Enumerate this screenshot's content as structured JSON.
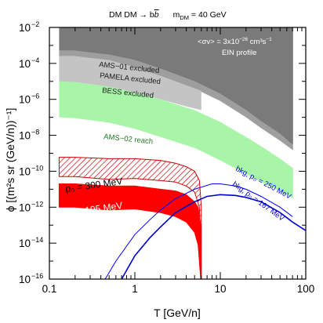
{
  "chart_data": {
    "type": "line",
    "title": {
      "process": "DM DM → b",
      "bbar": "b",
      "mass": "m",
      "mass_sub": "DM",
      "mass_value": " = 40 GeV"
    },
    "xlabel": "T  [GeV/n]",
    "ylabel": "ϕ [(m²s sr (GeV/n))⁻¹]",
    "xscale": "log",
    "yscale": "log",
    "xlim": [
      0.1,
      100
    ],
    "ylim": [
      1e-16,
      0.01
    ],
    "x_ticks": [
      {
        "value": 0.1,
        "label": "0.1"
      },
      {
        "value": 1,
        "label": "1"
      },
      {
        "value": 10,
        "label": "10"
      },
      {
        "value": 100,
        "label": "100"
      }
    ],
    "y_ticks": [
      {
        "value": 0.01,
        "label": "10",
        "exp": "−2"
      },
      {
        "value": 0.0001,
        "label": "10",
        "exp": "−4"
      },
      {
        "value": 1e-06,
        "label": "10",
        "exp": "−6"
      },
      {
        "value": 1e-08,
        "label": "10",
        "exp": "−8"
      },
      {
        "value": 1e-10,
        "label": "10",
        "exp": "−10"
      },
      {
        "value": 1e-12,
        "label": "10",
        "exp": "−12"
      },
      {
        "value": 1e-14,
        "label": "10",
        "exp": "−14"
      },
      {
        "value": 1e-16,
        "label": "10",
        "exp": "−16"
      }
    ],
    "annotations": {
      "cross_section": "<σv> = 3x10",
      "cross_section_exp": "−26",
      "cross_section_unit": " cm³s",
      "cross_section_unit_exp": "−1",
      "profile": "EIN profile"
    },
    "regions": [
      {
        "name": "AMS−01 excluded",
        "color": "#7a7a7a",
        "label_color": "#1a1a1a",
        "x": [
          0.13,
          0.2,
          0.5,
          1,
          2,
          5,
          10,
          20,
          30,
          50,
          65,
          71
        ],
        "upper": 0.01,
        "lower": [
          0.0005,
          0.0005,
          0.0003,
          0.00015,
          5e-05,
          1e-05,
          2e-06,
          2.5e-07,
          6e-08,
          1.2e-08,
          4e-09,
          3e-09
        ]
      },
      {
        "name": "PAMELA excluded",
        "color": "#9e9e9e",
        "label_color": "#1a1a1a",
        "x": [
          0.13,
          0.2,
          0.5,
          1,
          2,
          5,
          10,
          20,
          30,
          50,
          65,
          71
        ],
        "upper": [
          0.0005,
          0.0005,
          0.0003,
          0.00015,
          5e-05,
          1e-05,
          2e-06,
          2.5e-07,
          6e-08,
          1.2e-08,
          4e-09,
          3e-09
        ],
        "lower": [
          0.00025,
          0.00025,
          0.00015,
          6e-05,
          2e-05,
          4e-06,
          8e-07,
          1e-07,
          2.5e-08,
          5e-09,
          2e-09,
          1.5e-09
        ]
      },
      {
        "name": "BESS excluded",
        "color": "#c4c4c4",
        "label_color": "#1a1a1a",
        "x": [
          0.13,
          0.2,
          0.5,
          1,
          2,
          4,
          6
        ],
        "upper": [
          0.00025,
          0.00025,
          0.00015,
          6e-05,
          2e-05,
          6e-06,
          3e-06
        ],
        "lower": [
          1e-05,
          9e-06,
          5e-06,
          2.5e-06,
          1e-06,
          4e-07,
          2.5e-07
        ]
      },
      {
        "name": "AMS−02 reach",
        "color": "#a8f5a8",
        "label_color": "#1f7a1f",
        "x": [
          0.13,
          0.2,
          0.5,
          1,
          2,
          5,
          10,
          20,
          30,
          50,
          65,
          71
        ],
        "upper": [
          1e-05,
          9e-06,
          5e-06,
          2.5e-06,
          1e-06,
          2.5e-07,
          5.5e-08,
          8e-09,
          2.5e-09,
          5e-10,
          2e-10,
          1.5e-10
        ],
        "lower": [
          1e-07,
          9e-08,
          5e-08,
          2.3e-08,
          8e-09,
          2e-09,
          4e-10,
          7e-11,
          2.5e-11,
          8e-12,
          4e-12,
          3e-12
        ]
      }
    ],
    "bands": [
      {
        "name": "p₀ = 300 MeV",
        "color": "#d00000",
        "fill": "hatched",
        "x": [
          0.13,
          0.2,
          0.5,
          1,
          2,
          3,
          4,
          5,
          5.7,
          6.0
        ],
        "upper": [
          6e-10,
          6e-10,
          5e-10,
          5e-10,
          4e-10,
          2.8e-10,
          1.8e-10,
          1e-10,
          3e-11,
          1e-12
        ],
        "lower": [
          5e-11,
          5e-11,
          3.5e-11,
          4e-11,
          3e-11,
          2.5e-11,
          1.5e-11,
          7e-12,
          1e-12,
          1e-16
        ]
      },
      {
        "name": "p₀ = 195 MeV",
        "color": "#ff0000",
        "fill": "solid",
        "x": [
          0.13,
          0.2,
          0.5,
          1,
          2,
          3,
          4,
          5,
          5.5,
          5.9
        ],
        "upper": [
          2e-11,
          2e-11,
          1.5e-11,
          1.5e-11,
          1e-11,
          8e-12,
          5e-12,
          2e-12,
          1e-12,
          1e-13
        ],
        "lower": [
          1e-12,
          1e-12,
          7e-13,
          8e-13,
          5e-13,
          3e-13,
          1.5e-13,
          4e-14,
          8e-15,
          1e-16
        ]
      }
    ],
    "series": [
      {
        "name": "bkg, p₀ = 250 MeV",
        "color": "#0000ff",
        "width": 1,
        "x": [
          0.45,
          0.6,
          1,
          1.5,
          2,
          3,
          5,
          8,
          10,
          15,
          20,
          30,
          50,
          70
        ],
        "y": [
          1e-16,
          1e-15,
          3e-14,
          2e-13,
          7e-13,
          3e-12,
          1e-11,
          2e-11,
          2e-11,
          1.5e-11,
          1e-11,
          4e-12,
          1e-12,
          3e-13
        ]
      },
      {
        "name": "bkg, p₀ = 167 MeV",
        "color": "#0000cc",
        "width": 1.6,
        "x": [
          0.7,
          1,
          1.5,
          2,
          3,
          5,
          7,
          10,
          15,
          20,
          30,
          50,
          70,
          100
        ],
        "y": [
          1e-16,
          2e-15,
          2e-14,
          8e-14,
          5e-13,
          2e-12,
          4e-12,
          5e-12,
          4.5e-12,
          3.5e-12,
          2e-12,
          5e-13,
          1.5e-13,
          5e-14
        ]
      }
    ],
    "legend_placement": "inline labels",
    "grid": false
  }
}
